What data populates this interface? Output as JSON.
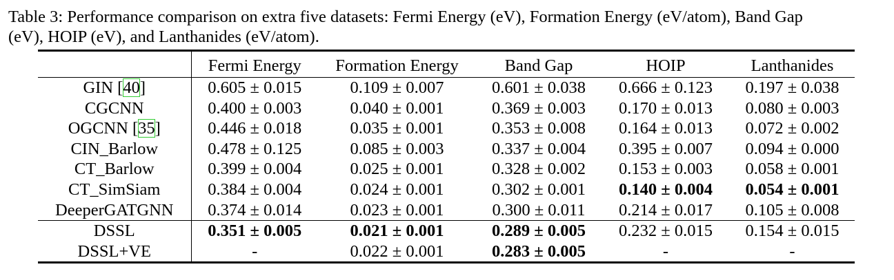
{
  "caption": {
    "line1": "Table 3: Performance comparison on extra five datasets: Fermi Energy (eV), Formation Energy (eV/atom), Band Gap",
    "line2": "(eV), HOIP (eV), and Lanthanides (eV/atom)."
  },
  "table": {
    "headers": [
      "",
      "Fermi Energy",
      "Formation Energy",
      "Band Gap",
      "HOIP",
      "Lanthanides"
    ],
    "rows": [
      {
        "method": "GIN ",
        "cite": "40",
        "suffix": "]",
        "prefix_bracket": "[",
        "values": [
          "0.605 ± 0.015",
          "0.109 ± 0.007",
          "0.601 ± 0.038",
          "0.666 ± 0.123",
          "0.197 ± 0.038"
        ],
        "bold": [
          false,
          false,
          false,
          false,
          false
        ]
      },
      {
        "method": "CGCNN",
        "values": [
          "0.400 ± 0.003",
          "0.040 ± 0.001",
          "0.369 ± 0.003",
          "0.170 ± 0.013",
          "0.080 ± 0.003"
        ],
        "bold": [
          false,
          false,
          false,
          false,
          false
        ]
      },
      {
        "method": "OGCNN ",
        "cite": "35",
        "suffix": "]",
        "prefix_bracket": "[",
        "values": [
          "0.446 ± 0.018",
          "0.035 ± 0.001",
          "0.353 ± 0.008",
          "0.164 ± 0.013",
          "0.072 ± 0.002"
        ],
        "bold": [
          false,
          false,
          false,
          false,
          false
        ]
      },
      {
        "method": "CIN_Barlow",
        "values": [
          "0.478 ± 0.125",
          "0.085 ± 0.003",
          "0.337 ± 0.004",
          "0.395 ± 0.007",
          "0.094 ± 0.000"
        ],
        "bold": [
          false,
          false,
          false,
          false,
          false
        ]
      },
      {
        "method": "CT_Barlow",
        "values": [
          "0.399 ± 0.004",
          "0.025 ± 0.001",
          "0.328 ± 0.002",
          "0.153 ± 0.003",
          "0.058 ± 0.001"
        ],
        "bold": [
          false,
          false,
          false,
          false,
          false
        ]
      },
      {
        "method": "CT_SimSiam",
        "values": [
          "0.384 ± 0.004",
          "0.024 ± 0.001",
          "0.302 ± 0.001",
          "0.140 ± 0.004",
          "0.054 ± 0.001"
        ],
        "bold": [
          false,
          false,
          false,
          true,
          true
        ]
      },
      {
        "method": "DeeperGATGNN",
        "values": [
          "0.374 ± 0.014",
          "0.023 ± 0.001",
          "0.300 ± 0.011",
          "0.214 ± 0.017",
          "0.105 ± 0.008"
        ],
        "bold": [
          false,
          false,
          false,
          false,
          false
        ]
      }
    ],
    "ours": [
      {
        "method": "DSSL",
        "values": [
          "0.351 ± 0.005",
          "0.021 ± 0.001",
          "0.289 ± 0.005",
          "0.232 ± 0.015",
          "0.154 ± 0.015"
        ],
        "bold": [
          true,
          true,
          true,
          false,
          false
        ]
      },
      {
        "method": "DSSL+VE",
        "values": [
          "-",
          "0.022 ± 0.001",
          "0.283 ± 0.005",
          "-",
          "-"
        ],
        "bold": [
          false,
          false,
          true,
          false,
          false
        ]
      }
    ]
  }
}
